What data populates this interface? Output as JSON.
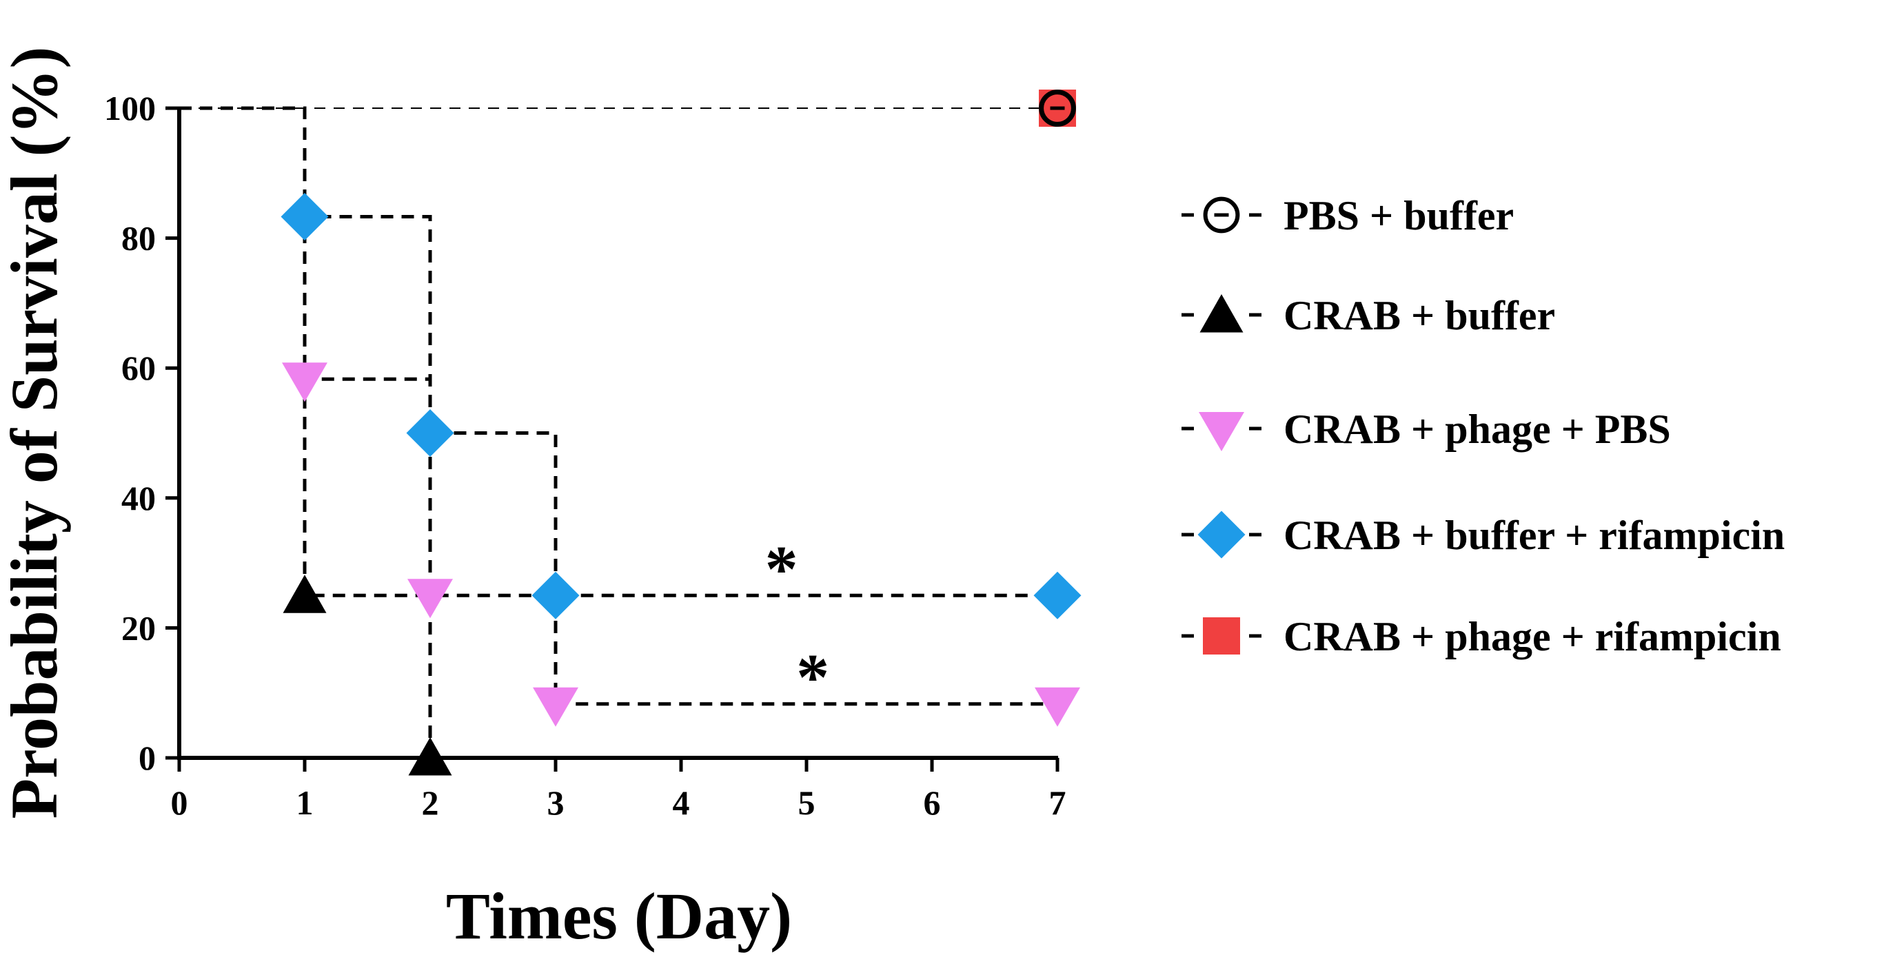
{
  "chart_data": {
    "type": "line",
    "title": "",
    "xlabel": "Times (Day)",
    "ylabel": "Probability of Survival (%)",
    "xlim": [
      0,
      7
    ],
    "ylim": [
      0,
      100
    ],
    "x_ticks": [
      "0",
      "1",
      "2",
      "3",
      "4",
      "5",
      "6",
      "7"
    ],
    "y_ticks": [
      "0",
      "20",
      "40",
      "60",
      "80",
      "100"
    ],
    "grid": false,
    "legend_position": "right",
    "step": true,
    "series": [
      {
        "name": "PBS + buffer",
        "marker": "circle",
        "color": "#000000",
        "fill": "#ffffff",
        "points": [
          [
            0,
            100
          ],
          [
            7,
            100
          ]
        ],
        "marker_x": [
          7
        ],
        "marker_y": [
          100
        ]
      },
      {
        "name": "CRAB + buffer",
        "marker": "triangle-up",
        "color": "#000000",
        "fill": "#000000",
        "points": [
          [
            0,
            100
          ],
          [
            1,
            100
          ],
          [
            1,
            25
          ],
          [
            2,
            25
          ],
          [
            2,
            0
          ]
        ],
        "marker_x": [
          1,
          2
        ],
        "marker_y": [
          25,
          0
        ]
      },
      {
        "name": "CRAB + phage + PBS",
        "marker": "triangle-down",
        "color": "#ee82ee",
        "fill": "#ee82ee",
        "points": [
          [
            0,
            100
          ],
          [
            1,
            100
          ],
          [
            1,
            58.3
          ],
          [
            2,
            58.3
          ],
          [
            2,
            25
          ],
          [
            3,
            25
          ],
          [
            3,
            8.3
          ],
          [
            7,
            8.3
          ]
        ],
        "marker_x": [
          1,
          2,
          3,
          7
        ],
        "marker_y": [
          58.3,
          25,
          8.3,
          8.3
        ]
      },
      {
        "name": "CRAB + buffer + rifampicin",
        "marker": "diamond",
        "color": "#1e9be8",
        "fill": "#1e9be8",
        "points": [
          [
            0,
            100
          ],
          [
            1,
            100
          ],
          [
            1,
            83.3
          ],
          [
            2,
            83.3
          ],
          [
            2,
            50
          ],
          [
            3,
            50
          ],
          [
            3,
            25
          ],
          [
            7,
            25
          ]
        ],
        "marker_x": [
          1,
          2,
          3,
          7
        ],
        "marker_y": [
          83.3,
          50,
          25,
          25
        ]
      },
      {
        "name": "CRAB + phage + rifampicin",
        "marker": "square",
        "color": "#f04040",
        "fill": "#f04040",
        "points": [
          [
            0,
            100
          ],
          [
            7,
            100
          ]
        ],
        "marker_x": [
          7
        ],
        "marker_y": [
          100
        ]
      }
    ],
    "annotations": [
      {
        "text": "*",
        "x": 4.8,
        "y": 25
      },
      {
        "text": "*",
        "x": 5.05,
        "y": 8.3
      }
    ]
  }
}
